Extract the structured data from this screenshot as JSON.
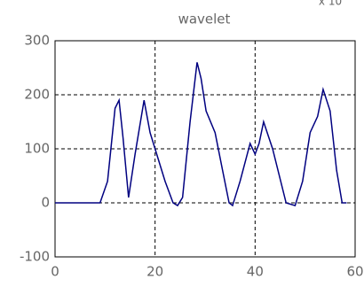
{
  "chart_data": {
    "type": "line",
    "title": "wavelet",
    "annotation": "x 10",
    "x": [
      0,
      9,
      10.5,
      12,
      12.8,
      13.6,
      14.7,
      16,
      17.8,
      19,
      20,
      22,
      23.6,
      24.5,
      25.5,
      27,
      28.4,
      29.2,
      30.2,
      32,
      33.5,
      34.8,
      35.5,
      37,
      39,
      40,
      40.8,
      41.7,
      43.5,
      46.2,
      48,
      49.5,
      51,
      52.5,
      53.6,
      55,
      56.3,
      57.4,
      58.3
    ],
    "series": [
      {
        "color": "#000080",
        "values": [
          0,
          0,
          40,
          175,
          190,
          120,
          10,
          90,
          190,
          130,
          100,
          40,
          0,
          -5,
          10,
          150,
          260,
          230,
          170,
          130,
          60,
          0,
          -5,
          40,
          110,
          90,
          110,
          150,
          100,
          0,
          -5,
          40,
          130,
          160,
          210,
          170,
          60,
          0,
          0
        ]
      }
    ],
    "xlim": [
      0,
      60
    ],
    "xticks": [
      0,
      20,
      40,
      60
    ],
    "ylim": [
      -100,
      300
    ],
    "yticks": [
      -100,
      0,
      100,
      200,
      300
    ],
    "grid": true
  }
}
